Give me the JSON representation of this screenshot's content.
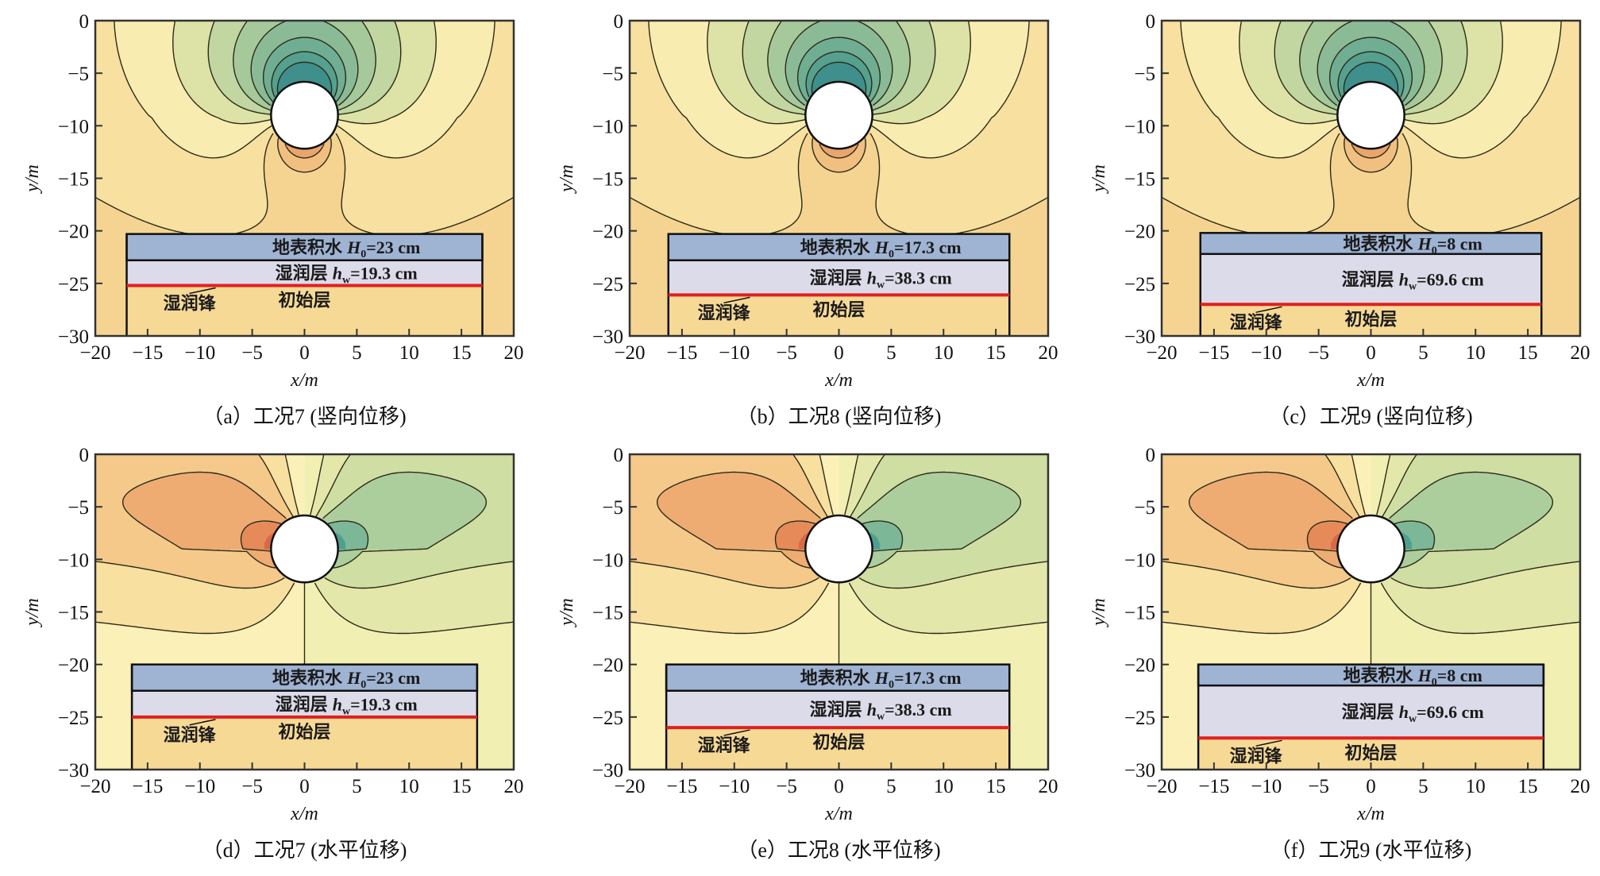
{
  "chart_data": [
    {
      "id": "a",
      "type": "contour",
      "quantity": "vertical",
      "title": "（a）工况7 (竖向位移)",
      "xlabel": "x/m",
      "ylabel": "y/m",
      "xlim": [
        -20,
        20
      ],
      "ylim": [
        -30,
        0
      ],
      "xticks": [
        "−20",
        "−15",
        "−10",
        "−5",
        "0",
        "5",
        "10",
        "15",
        "20"
      ],
      "yticks": [
        "0",
        "−5",
        "−10",
        "−15",
        "−20",
        "−25",
        "−30"
      ],
      "contour_levels": [
        -40,
        -35,
        -30,
        -25,
        -20,
        -15,
        -10,
        -5,
        0,
        5,
        10
      ],
      "tunnel": {
        "x": 0,
        "y": -9,
        "r": 3.2
      },
      "layers": {
        "water_label": "地表积水",
        "water_sym": "H",
        "water_sub": "0",
        "water_value": "=23 cm",
        "wet_label": "湿润层",
        "wet_sym": "h",
        "wet_sub": "w",
        "wet_value": "=19.3 cm",
        "front_label": "湿润锋",
        "initial_label": "初始层",
        "box_x": [
          -17,
          17
        ],
        "top": -20.3,
        "water_bottom": -22.8,
        "front": -25.2
      }
    },
    {
      "id": "b",
      "type": "contour",
      "quantity": "vertical",
      "title": "（b）工况8 (竖向位移)",
      "xlabel": "x/m",
      "ylabel": "y/m",
      "xlim": [
        -20,
        20
      ],
      "ylim": [
        -30,
        0
      ],
      "xticks": [
        "−20",
        "−15",
        "−10",
        "−5",
        "0",
        "5",
        "10",
        "15",
        "20"
      ],
      "yticks": [
        "0",
        "−5",
        "−10",
        "−15",
        "−20",
        "−25",
        "−30"
      ],
      "contour_levels": [
        -40,
        -35,
        -30,
        -25,
        -20,
        -15,
        -10,
        -5,
        0,
        5,
        10
      ],
      "tunnel": {
        "x": 0,
        "y": -9,
        "r": 3.2
      },
      "layers": {
        "water_label": "地表积水",
        "water_sym": "H",
        "water_sub": "0",
        "water_value": "=17.3 cm",
        "wet_label": "湿润层",
        "wet_sym": "h",
        "wet_sub": "w",
        "wet_value": "=38.3 cm",
        "front_label": "湿润锋",
        "initial_label": "初始层",
        "box_x": [
          -16.3,
          16.3
        ],
        "top": -20.3,
        "water_bottom": -22.8,
        "front": -26.1
      }
    },
    {
      "id": "c",
      "type": "contour",
      "quantity": "vertical",
      "title": "（c）工况9 (竖向位移)",
      "xlabel": "x/m",
      "ylabel": "y/m",
      "xlim": [
        -20,
        20
      ],
      "ylim": [
        -30,
        0
      ],
      "xticks": [
        "−20",
        "−15",
        "−10",
        "−5",
        "0",
        "5",
        "10",
        "15",
        "20"
      ],
      "yticks": [
        "0",
        "−5",
        "−10",
        "−15",
        "−20",
        "−25",
        "−30"
      ],
      "contour_levels": [
        -40,
        -35,
        -30,
        -25,
        -20,
        -15,
        -10,
        -5,
        0,
        5,
        10
      ],
      "tunnel": {
        "x": 0,
        "y": -9,
        "r": 3.2
      },
      "layers": {
        "water_label": "地表积水",
        "water_sym": "H",
        "water_sub": "0",
        "water_value": "=8 cm",
        "wet_label": "湿润层",
        "wet_sym": "h",
        "wet_sub": "w",
        "wet_value": "=69.6 cm",
        "front_label": "湿润锋",
        "initial_label": "初始层",
        "box_x": [
          -16.3,
          16.3
        ],
        "top": -20.2,
        "water_bottom": -22.2,
        "front": -27
      }
    },
    {
      "id": "d",
      "type": "contour",
      "quantity": "horizontal",
      "title": "（d）工况7 (水平位移)",
      "xlabel": "x/m",
      "ylabel": "y/m",
      "xlim": [
        -20,
        20
      ],
      "ylim": [
        -30,
        0
      ],
      "xticks": [
        "−20",
        "−15",
        "−10",
        "−5",
        "0",
        "5",
        "10",
        "15",
        "20"
      ],
      "yticks": [
        "0",
        "−5",
        "−10",
        "−15",
        "−20",
        "−25",
        "−30"
      ],
      "contour_levels": [
        -20,
        -15,
        -10,
        -5,
        0,
        5,
        10,
        15,
        20
      ],
      "tunnel": {
        "x": 0,
        "y": -9,
        "r": 3.2
      },
      "layers": {
        "water_label": "地表积水",
        "water_sym": "H",
        "water_sub": "0",
        "water_value": "=23 cm",
        "wet_label": "湿润层",
        "wet_sym": "h",
        "wet_sub": "w",
        "wet_value": "=19.3 cm",
        "front_label": "湿润锋",
        "initial_label": "初始层",
        "box_x": [
          -16.5,
          16.5
        ],
        "top": -20,
        "water_bottom": -22.5,
        "front": -25
      }
    },
    {
      "id": "e",
      "type": "contour",
      "quantity": "horizontal",
      "title": "（e）工况8 (水平位移)",
      "xlabel": "x/m",
      "ylabel": "y/m",
      "xlim": [
        -20,
        20
      ],
      "ylim": [
        -30,
        0
      ],
      "xticks": [
        "−20",
        "−15",
        "−10",
        "−5",
        "0",
        "5",
        "10",
        "15",
        "20"
      ],
      "yticks": [
        "0",
        "−5",
        "−10",
        "−15",
        "−20",
        "−25",
        "−30"
      ],
      "contour_levels": [
        -20,
        -15,
        -10,
        -5,
        0,
        5,
        10,
        15,
        20
      ],
      "tunnel": {
        "x": 0,
        "y": -9,
        "r": 3.2
      },
      "layers": {
        "water_label": "地表积水",
        "water_sym": "H",
        "water_sub": "0",
        "water_value": "=17.3 cm",
        "wet_label": "湿润层",
        "wet_sym": "h",
        "wet_sub": "w",
        "wet_value": "=38.3 cm",
        "front_label": "湿润锋",
        "initial_label": "初始层",
        "box_x": [
          -16.5,
          16.3
        ],
        "top": -20,
        "water_bottom": -22.5,
        "front": -26
      }
    },
    {
      "id": "f",
      "type": "contour",
      "quantity": "horizontal",
      "title": "（f）工况9 (水平位移)",
      "xlabel": "x/m",
      "ylabel": "y/m",
      "xlim": [
        -20,
        20
      ],
      "ylim": [
        -30,
        0
      ],
      "xticks": [
        "−20",
        "−15",
        "−10",
        "−5",
        "0",
        "5",
        "10",
        "15",
        "20"
      ],
      "yticks": [
        "0",
        "−5",
        "−10",
        "−15",
        "−20",
        "−25",
        "−30"
      ],
      "contour_levels": [
        -20,
        -15,
        -10,
        -5,
        0,
        5,
        10,
        15,
        20
      ],
      "tunnel": {
        "x": 0,
        "y": -9,
        "r": 3.2
      },
      "layers": {
        "water_label": "地表积水",
        "water_sym": "H",
        "water_sub": "0",
        "water_value": "=8 cm",
        "wet_label": "湿润层",
        "wet_sym": "h",
        "wet_sub": "w",
        "wet_value": "=69.6 cm",
        "front_label": "湿润锋",
        "initial_label": "初始层",
        "box_x": [
          -16.5,
          16.5
        ],
        "top": -20,
        "water_bottom": -22,
        "front": -27
      }
    }
  ],
  "colors": {
    "water": "#9fb3d3",
    "wet": "#dcdbe9",
    "front": "#e02020",
    "initial": "#f6d995"
  }
}
